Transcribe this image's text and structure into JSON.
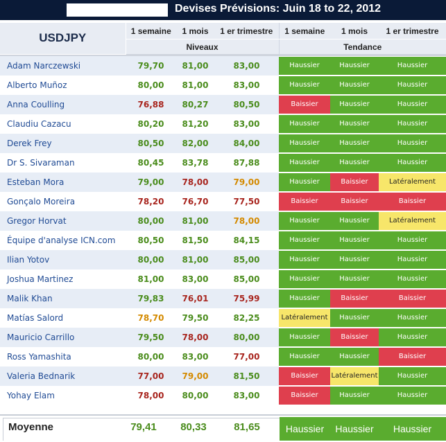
{
  "title": "Devises Prévisions: Juin 18 to 22, 2012",
  "pair": "USDJPY",
  "headers": {
    "w": "1 semaine",
    "m": "1 mois",
    "q": "1 er trimestre",
    "levels": "Niveaux",
    "trend": "Tendance"
  },
  "colors": {
    "green_text": "#4a8c1c",
    "red_text": "#a8251e",
    "orange_text": "#d48a00",
    "green_cell": "#5aac2f",
    "red_cell": "#df3f4e",
    "yellow_cell": "#f7e66a"
  },
  "rows": [
    {
      "name": "Adam Narczewski",
      "w": "79,70",
      "m": "81,00",
      "q": "83,00",
      "wc": "g",
      "mc": "g",
      "qc": "g",
      "tw": "Haussier",
      "tm": "Haussier",
      "tq": "Haussier"
    },
    {
      "name": "Alberto Muñoz",
      "w": "80,00",
      "m": "81,00",
      "q": "83,00",
      "wc": "g",
      "mc": "g",
      "qc": "g",
      "tw": "Haussier",
      "tm": "Haussier",
      "tq": "Haussier"
    },
    {
      "name": "Anna Coulling",
      "w": "76,88",
      "m": "80,27",
      "q": "80,50",
      "wc": "r",
      "mc": "g",
      "qc": "g",
      "tw": "Baissier",
      "tm": "Haussier",
      "tq": "Haussier"
    },
    {
      "name": "Claudiu Cazacu",
      "w": "80,20",
      "m": "81,20",
      "q": "83,00",
      "wc": "g",
      "mc": "g",
      "qc": "g",
      "tw": "Haussier",
      "tm": "Haussier",
      "tq": "Haussier"
    },
    {
      "name": "Derek Frey",
      "w": "80,50",
      "m": "82,00",
      "q": "84,00",
      "wc": "g",
      "mc": "g",
      "qc": "g",
      "tw": "Haussier",
      "tm": "Haussier",
      "tq": "Haussier"
    },
    {
      "name": "Dr S. Sivaraman",
      "w": "80,45",
      "m": "83,78",
      "q": "87,88",
      "wc": "g",
      "mc": "g",
      "qc": "g",
      "tw": "Haussier",
      "tm": "Haussier",
      "tq": "Haussier"
    },
    {
      "name": "Esteban Mora",
      "w": "79,00",
      "m": "78,00",
      "q": "79,00",
      "wc": "g",
      "mc": "r",
      "qc": "o",
      "tw": "Haussier",
      "tm": "Baissier",
      "tq": "Latéralement"
    },
    {
      "name": "Gonçalo Moreira",
      "w": "78,20",
      "m": "76,70",
      "q": "77,50",
      "wc": "r",
      "mc": "r",
      "qc": "r",
      "tw": "Baissier",
      "tm": "Baissier",
      "tq": "Baissier"
    },
    {
      "name": "Gregor Horvat",
      "w": "80,00",
      "m": "81,00",
      "q": "78,00",
      "wc": "g",
      "mc": "g",
      "qc": "o",
      "tw": "Haussier",
      "tm": "Haussier",
      "tq": "Latéralement"
    },
    {
      "name": "Équipe d'analyse ICN.com",
      "w": "80,50",
      "m": "81,50",
      "q": "84,15",
      "wc": "g",
      "mc": "g",
      "qc": "g",
      "tw": "Haussier",
      "tm": "Haussier",
      "tq": "Haussier"
    },
    {
      "name": "Ilian Yotov",
      "w": "80,00",
      "m": "81,00",
      "q": "85,00",
      "wc": "g",
      "mc": "g",
      "qc": "g",
      "tw": "Haussier",
      "tm": "Haussier",
      "tq": "Haussier"
    },
    {
      "name": "Joshua Martinez",
      "w": "81,00",
      "m": "83,00",
      "q": "85,00",
      "wc": "g",
      "mc": "g",
      "qc": "g",
      "tw": "Haussier",
      "tm": "Haussier",
      "tq": "Haussier"
    },
    {
      "name": "Malik Khan",
      "w": "79,83",
      "m": "76,01",
      "q": "75,99",
      "wc": "g",
      "mc": "r",
      "qc": "r",
      "tw": "Haussier",
      "tm": "Baissier",
      "tq": "Baissier"
    },
    {
      "name": "Matías Salord",
      "w": "78,70",
      "m": "79,50",
      "q": "82,25",
      "wc": "o",
      "mc": "g",
      "qc": "g",
      "tw": "Latéralement",
      "tm": "Haussier",
      "tq": "Haussier"
    },
    {
      "name": "Mauricio Carrillo",
      "w": "79,50",
      "m": "78,00",
      "q": "80,00",
      "wc": "g",
      "mc": "r",
      "qc": "g",
      "tw": "Haussier",
      "tm": "Baissier",
      "tq": "Haussier"
    },
    {
      "name": "Ross Yamashita",
      "w": "80,00",
      "m": "83,00",
      "q": "77,00",
      "wc": "g",
      "mc": "g",
      "qc": "r",
      "tw": "Haussier",
      "tm": "Haussier",
      "tq": "Baissier"
    },
    {
      "name": "Valeria Bednarik",
      "w": "77,00",
      "m": "79,00",
      "q": "81,50",
      "wc": "r",
      "mc": "o",
      "qc": "g",
      "tw": "Baissier",
      "tm": "Latéralement",
      "tq": "Haussier"
    },
    {
      "name": "Yohay Elam",
      "w": "78,00",
      "m": "80,00",
      "q": "83,00",
      "wc": "r",
      "mc": "g",
      "qc": "g",
      "tw": "Baissier",
      "tm": "Haussier",
      "tq": "Haussier"
    }
  ],
  "footer": {
    "label": "Moyenne",
    "w": "79,41",
    "m": "80,33",
    "q": "81,65",
    "tw": "Haussier",
    "tm": "Haussier",
    "tq": "Haussier"
  }
}
